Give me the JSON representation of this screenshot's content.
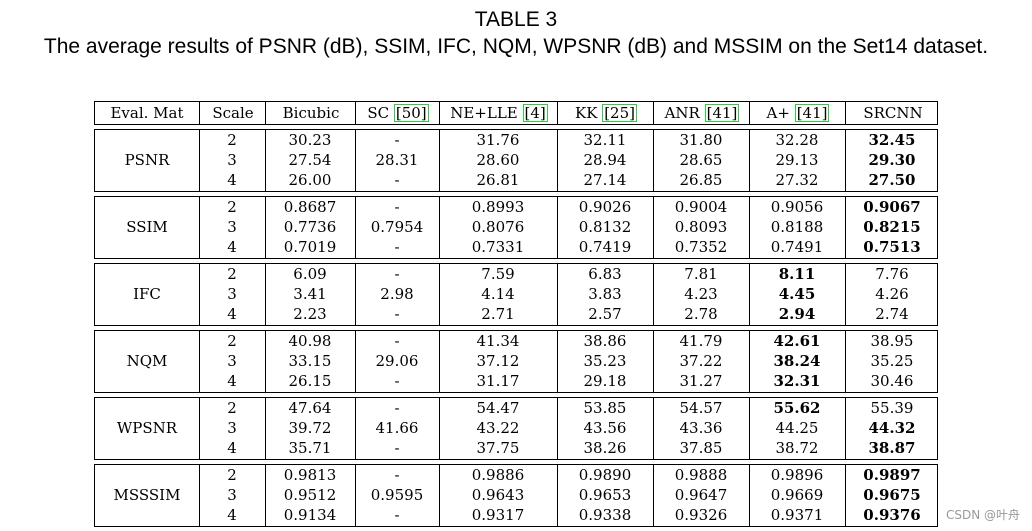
{
  "caption": {
    "title": "TABLE 3",
    "subtitle": "The average results of PSNR (dB), SSIM, IFC, NQM, WPSNR (dB) and MSSIM on the Set14 dataset."
  },
  "table": {
    "headers": [
      {
        "text": "Eval. Mat"
      },
      {
        "text": "Scale"
      },
      {
        "text": "Bicubic"
      },
      {
        "text": "SC ",
        "ref": "[50]"
      },
      {
        "text": "NE+LLE ",
        "ref": "[4]"
      },
      {
        "text": "KK ",
        "ref": "[25]"
      },
      {
        "text": "ANR ",
        "ref": "[41]"
      },
      {
        "text": "A+ ",
        "ref": "[41]"
      },
      {
        "text": "SRCNN"
      }
    ],
    "groups": [
      {
        "metric": "PSNR",
        "rows": [
          {
            "scale": "2",
            "bicubic": "30.23",
            "sc": "-",
            "nelle": "31.76",
            "kk": "32.11",
            "anr": "31.80",
            "aplus": "32.28",
            "srcnn": "32.45",
            "bold": [
              "srcnn"
            ]
          },
          {
            "scale": "3",
            "bicubic": "27.54",
            "sc": "28.31",
            "nelle": "28.60",
            "kk": "28.94",
            "anr": "28.65",
            "aplus": "29.13",
            "srcnn": "29.30",
            "bold": [
              "srcnn"
            ]
          },
          {
            "scale": "4",
            "bicubic": "26.00",
            "sc": "-",
            "nelle": "26.81",
            "kk": "27.14",
            "anr": "26.85",
            "aplus": "27.32",
            "srcnn": "27.50",
            "bold": [
              "srcnn"
            ]
          }
        ]
      },
      {
        "metric": "SSIM",
        "rows": [
          {
            "scale": "2",
            "bicubic": "0.8687",
            "sc": "-",
            "nelle": "0.8993",
            "kk": "0.9026",
            "anr": "0.9004",
            "aplus": "0.9056",
            "srcnn": "0.9067",
            "bold": [
              "srcnn"
            ]
          },
          {
            "scale": "3",
            "bicubic": "0.7736",
            "sc": "0.7954",
            "nelle": "0.8076",
            "kk": "0.8132",
            "anr": "0.8093",
            "aplus": "0.8188",
            "srcnn": "0.8215",
            "bold": [
              "srcnn"
            ]
          },
          {
            "scale": "4",
            "bicubic": "0.7019",
            "sc": "-",
            "nelle": "0.7331",
            "kk": "0.7419",
            "anr": "0.7352",
            "aplus": "0.7491",
            "srcnn": "0.7513",
            "bold": [
              "srcnn"
            ]
          }
        ]
      },
      {
        "metric": "IFC",
        "rows": [
          {
            "scale": "2",
            "bicubic": "6.09",
            "sc": "-",
            "nelle": "7.59",
            "kk": "6.83",
            "anr": "7.81",
            "aplus": "8.11",
            "srcnn": "7.76",
            "bold": [
              "aplus"
            ]
          },
          {
            "scale": "3",
            "bicubic": "3.41",
            "sc": "2.98",
            "nelle": "4.14",
            "kk": "3.83",
            "anr": "4.23",
            "aplus": "4.45",
            "srcnn": "4.26",
            "bold": [
              "aplus"
            ]
          },
          {
            "scale": "4",
            "bicubic": "2.23",
            "sc": "-",
            "nelle": "2.71",
            "kk": "2.57",
            "anr": "2.78",
            "aplus": "2.94",
            "srcnn": "2.74",
            "bold": [
              "aplus"
            ]
          }
        ]
      },
      {
        "metric": "NQM",
        "rows": [
          {
            "scale": "2",
            "bicubic": "40.98",
            "sc": "-",
            "nelle": "41.34",
            "kk": "38.86",
            "anr": "41.79",
            "aplus": "42.61",
            "srcnn": "38.95",
            "bold": [
              "aplus"
            ]
          },
          {
            "scale": "3",
            "bicubic": "33.15",
            "sc": "29.06",
            "nelle": "37.12",
            "kk": "35.23",
            "anr": "37.22",
            "aplus": "38.24",
            "srcnn": "35.25",
            "bold": [
              "aplus"
            ]
          },
          {
            "scale": "4",
            "bicubic": "26.15",
            "sc": "-",
            "nelle": "31.17",
            "kk": "29.18",
            "anr": "31.27",
            "aplus": "32.31",
            "srcnn": "30.46",
            "bold": [
              "aplus"
            ]
          }
        ]
      },
      {
        "metric": "WPSNR",
        "rows": [
          {
            "scale": "2",
            "bicubic": "47.64",
            "sc": "-",
            "nelle": "54.47",
            "kk": "53.85",
            "anr": "54.57",
            "aplus": "55.62",
            "srcnn": "55.39",
            "bold": [
              "aplus"
            ]
          },
          {
            "scale": "3",
            "bicubic": "39.72",
            "sc": "41.66",
            "nelle": "43.22",
            "kk": "43.56",
            "anr": "43.36",
            "aplus": "44.25",
            "srcnn": "44.32",
            "bold": [
              "srcnn"
            ]
          },
          {
            "scale": "4",
            "bicubic": "35.71",
            "sc": "-",
            "nelle": "37.75",
            "kk": "38.26",
            "anr": "37.85",
            "aplus": "38.72",
            "srcnn": "38.87",
            "bold": [
              "srcnn"
            ]
          }
        ]
      },
      {
        "metric": "MSSSIM",
        "rows": [
          {
            "scale": "2",
            "bicubic": "0.9813",
            "sc": "-",
            "nelle": "0.9886",
            "kk": "0.9890",
            "anr": "0.9888",
            "aplus": "0.9896",
            "srcnn": "0.9897",
            "bold": [
              "srcnn"
            ]
          },
          {
            "scale": "3",
            "bicubic": "0.9512",
            "sc": "0.9595",
            "nelle": "0.9643",
            "kk": "0.9653",
            "anr": "0.9647",
            "aplus": "0.9669",
            "srcnn": "0.9675",
            "bold": [
              "srcnn"
            ]
          },
          {
            "scale": "4",
            "bicubic": "0.9134",
            "sc": "-",
            "nelle": "0.9317",
            "kk": "0.9338",
            "anr": "0.9326",
            "aplus": "0.9371",
            "srcnn": "0.9376",
            "bold": [
              "srcnn"
            ]
          }
        ]
      }
    ]
  },
  "watermark": "CSDN @叶舟",
  "colors": {
    "ref_box": "#2ecc40",
    "watermark": "#999999"
  }
}
